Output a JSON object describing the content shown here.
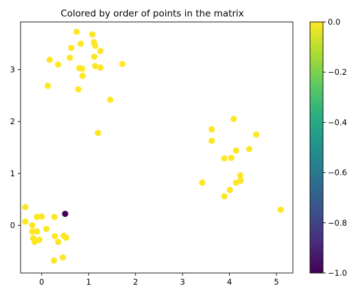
{
  "chart_data": {
    "type": "scatter",
    "title": "Colored by order of points in the matrix",
    "xlim": [
      -0.45,
      5.35
    ],
    "ylim": [
      -0.92,
      3.92
    ],
    "x_ticks": [
      0,
      1,
      2,
      3,
      4,
      5
    ],
    "y_ticks": [
      0,
      1,
      2,
      3
    ],
    "grid": false,
    "colorbar": {
      "min": -1.0,
      "max": 0.0,
      "ticks": [
        0.0,
        -0.2,
        -0.4,
        -0.6,
        -0.8,
        -1.0
      ],
      "tick_labels": [
        "0.0",
        "−0.2",
        "−0.4",
        "−0.6",
        "−0.8",
        "−1.0"
      ],
      "colormap": "viridis"
    },
    "colors": {
      "high": "#fde725",
      "low": "#440154"
    },
    "points": [
      {
        "x": 0.5,
        "y": 0.22,
        "c": -1
      },
      {
        "x": -0.35,
        "y": 0.35,
        "c": 0
      },
      {
        "x": -0.35,
        "y": 0.07,
        "c": 0
      },
      {
        "x": -0.2,
        "y": 0.0,
        "c": 0
      },
      {
        "x": -0.2,
        "y": -0.12,
        "c": 0
      },
      {
        "x": -0.1,
        "y": -0.12,
        "c": 0
      },
      {
        "x": -0.1,
        "y": 0.16,
        "c": 0
      },
      {
        "x": 0.0,
        "y": 0.17,
        "c": 0
      },
      {
        "x": -0.18,
        "y": -0.25,
        "c": 0
      },
      {
        "x": -0.15,
        "y": -0.32,
        "c": 0
      },
      {
        "x": -0.05,
        "y": -0.28,
        "c": 0
      },
      {
        "x": 0.1,
        "y": -0.07,
        "c": 0
      },
      {
        "x": 0.27,
        "y": 0.16,
        "c": 0
      },
      {
        "x": 0.28,
        "y": -0.21,
        "c": 0
      },
      {
        "x": 0.35,
        "y": -0.32,
        "c": 0
      },
      {
        "x": 0.47,
        "y": -0.2,
        "c": 0
      },
      {
        "x": 0.52,
        "y": -0.24,
        "c": 0
      },
      {
        "x": 0.45,
        "y": -0.62,
        "c": 0
      },
      {
        "x": 0.26,
        "y": -0.68,
        "c": 0
      },
      {
        "x": 0.74,
        "y": 3.73,
        "c": 0
      },
      {
        "x": 1.08,
        "y": 3.68,
        "c": 0
      },
      {
        "x": 0.83,
        "y": 3.5,
        "c": 0
      },
      {
        "x": 1.11,
        "y": 3.53,
        "c": 0
      },
      {
        "x": 1.14,
        "y": 3.46,
        "c": 0
      },
      {
        "x": 0.63,
        "y": 3.42,
        "c": 0
      },
      {
        "x": 1.25,
        "y": 3.36,
        "c": 0
      },
      {
        "x": 0.6,
        "y": 3.23,
        "c": 0
      },
      {
        "x": 1.12,
        "y": 3.25,
        "c": 0
      },
      {
        "x": 0.17,
        "y": 3.19,
        "c": 0
      },
      {
        "x": 0.35,
        "y": 3.1,
        "c": 0
      },
      {
        "x": 1.72,
        "y": 3.11,
        "c": 0
      },
      {
        "x": 1.14,
        "y": 3.07,
        "c": 0
      },
      {
        "x": 1.25,
        "y": 3.04,
        "c": 0
      },
      {
        "x": 0.8,
        "y": 3.03,
        "c": 0
      },
      {
        "x": 0.86,
        "y": 3.02,
        "c": 0
      },
      {
        "x": 0.87,
        "y": 2.88,
        "c": 0
      },
      {
        "x": 0.13,
        "y": 2.69,
        "c": 0
      },
      {
        "x": 0.78,
        "y": 2.62,
        "c": 0
      },
      {
        "x": 1.46,
        "y": 2.42,
        "c": 0
      },
      {
        "x": 1.2,
        "y": 1.78,
        "c": 0
      },
      {
        "x": 4.09,
        "y": 2.05,
        "c": 0
      },
      {
        "x": 3.62,
        "y": 1.85,
        "c": 0
      },
      {
        "x": 4.57,
        "y": 1.75,
        "c": 0
      },
      {
        "x": 3.62,
        "y": 1.63,
        "c": 0
      },
      {
        "x": 4.42,
        "y": 1.47,
        "c": 0
      },
      {
        "x": 4.14,
        "y": 1.44,
        "c": 0
      },
      {
        "x": 3.89,
        "y": 1.29,
        "c": 0
      },
      {
        "x": 4.04,
        "y": 1.3,
        "c": 0
      },
      {
        "x": 4.23,
        "y": 0.96,
        "c": 0
      },
      {
        "x": 4.24,
        "y": 0.86,
        "c": 0
      },
      {
        "x": 4.14,
        "y": 0.82,
        "c": 0
      },
      {
        "x": 3.42,
        "y": 0.82,
        "c": 0
      },
      {
        "x": 4.01,
        "y": 0.68,
        "c": 0
      },
      {
        "x": 3.89,
        "y": 0.56,
        "c": 0
      },
      {
        "x": 5.09,
        "y": 0.3,
        "c": 0
      }
    ]
  }
}
